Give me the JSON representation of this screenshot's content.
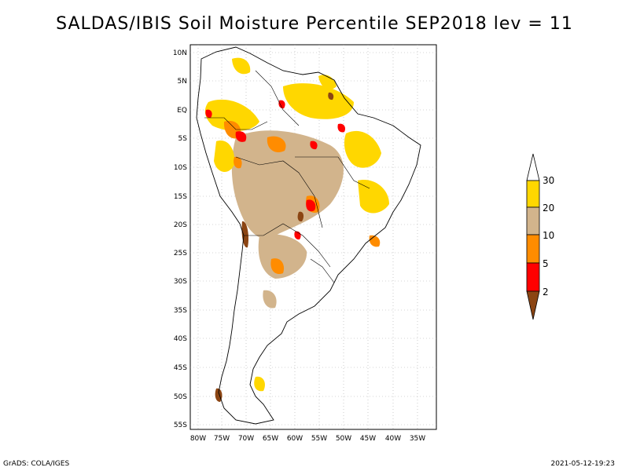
{
  "title": "SALDAS/IBIS Soil Moisture Percentile SEP2018 lev = 11",
  "axes": {
    "lat_ticks": [
      "10N",
      "5N",
      "EQ",
      "5S",
      "10S",
      "15S",
      "20S",
      "25S",
      "30S",
      "35S",
      "40S",
      "45S",
      "50S",
      "55S"
    ],
    "lon_ticks": [
      "80W",
      "75W",
      "70W",
      "65W",
      "60W",
      "55W",
      "50W",
      "45W",
      "40W",
      "35W"
    ]
  },
  "legend": {
    "labels": [
      "2",
      "5",
      "10",
      "20",
      "30"
    ],
    "colors": {
      "lt2": "#8b4513",
      "b2_5": "#ff0000",
      "b5_10": "#ff8c00",
      "b10_20": "#d2b48c",
      "b20_30": "#ffd700",
      "gt30": "#ffffff"
    }
  },
  "footer": {
    "left": "GrADS: COLA/IGES",
    "right": "2021-05-12-19:23"
  }
}
